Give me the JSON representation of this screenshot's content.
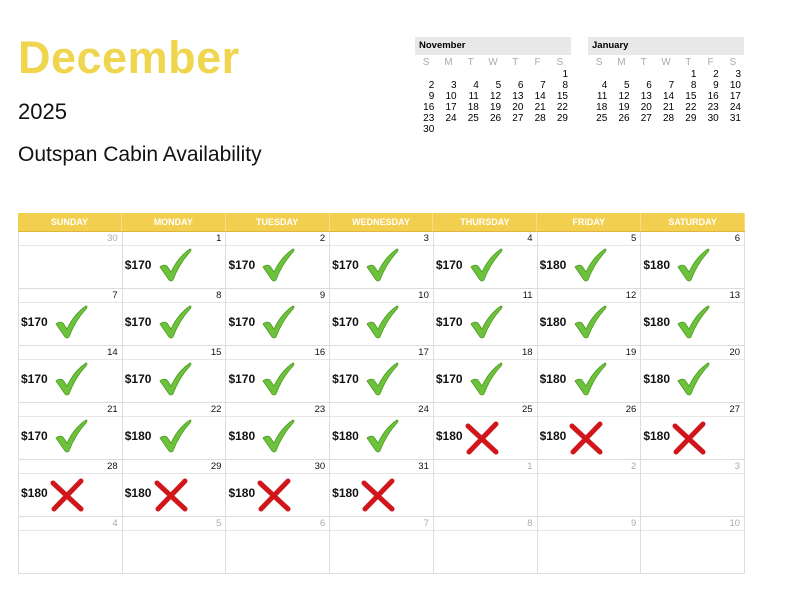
{
  "header": {
    "month": "December",
    "year": "2025",
    "subtitle": "Outspan Cabin Availability"
  },
  "mini_calendars": [
    {
      "title": "November",
      "dow": [
        "S",
        "M",
        "T",
        "W",
        "T",
        "F",
        "S"
      ],
      "weeks": [
        [
          "",
          "",
          "",
          "",
          "",
          "",
          "1"
        ],
        [
          "2",
          "3",
          "4",
          "5",
          "6",
          "7",
          "8"
        ],
        [
          "9",
          "10",
          "11",
          "12",
          "13",
          "14",
          "15"
        ],
        [
          "16",
          "17",
          "18",
          "19",
          "20",
          "21",
          "22"
        ],
        [
          "23",
          "24",
          "25",
          "26",
          "27",
          "28",
          "29"
        ],
        [
          "30",
          "",
          "",
          "",
          "",
          "",
          ""
        ]
      ]
    },
    {
      "title": "January",
      "dow": [
        "S",
        "M",
        "T",
        "W",
        "T",
        "F",
        "S"
      ],
      "weeks": [
        [
          "",
          "",
          "",
          "",
          "1",
          "2",
          "3"
        ],
        [
          "4",
          "5",
          "6",
          "7",
          "8",
          "9",
          "10"
        ],
        [
          "11",
          "12",
          "13",
          "14",
          "15",
          "16",
          "17"
        ],
        [
          "18",
          "19",
          "20",
          "21",
          "22",
          "23",
          "24"
        ],
        [
          "25",
          "26",
          "27",
          "28",
          "29",
          "30",
          "31"
        ]
      ]
    }
  ],
  "weekdays": [
    "SUNDAY",
    "MONDAY",
    "TUESDAY",
    "WEDNESDAY",
    "THURSDAY",
    "FRIDAY",
    "SATURDAY"
  ],
  "colors": {
    "accent": "#f3cf4f",
    "title": "#f0d64e",
    "available": "#6cc23a",
    "booked": "#d0161b"
  },
  "weeks": [
    [
      {
        "day": "30",
        "muted": true
      },
      {
        "day": "1",
        "price": "$170",
        "status": "available"
      },
      {
        "day": "2",
        "price": "$170",
        "status": "available"
      },
      {
        "day": "3",
        "price": "$170",
        "status": "available"
      },
      {
        "day": "4",
        "price": "$170",
        "status": "available"
      },
      {
        "day": "5",
        "price": "$180",
        "status": "available"
      },
      {
        "day": "6",
        "price": "$180",
        "status": "available"
      }
    ],
    [
      {
        "day": "7",
        "price": "$170",
        "status": "available"
      },
      {
        "day": "8",
        "price": "$170",
        "status": "available"
      },
      {
        "day": "9",
        "price": "$170",
        "status": "available"
      },
      {
        "day": "10",
        "price": "$170",
        "status": "available"
      },
      {
        "day": "11",
        "price": "$170",
        "status": "available"
      },
      {
        "day": "12",
        "price": "$180",
        "status": "available"
      },
      {
        "day": "13",
        "price": "$180",
        "status": "available"
      }
    ],
    [
      {
        "day": "14",
        "price": "$170",
        "status": "available"
      },
      {
        "day": "15",
        "price": "$170",
        "status": "available"
      },
      {
        "day": "16",
        "price": "$170",
        "status": "available"
      },
      {
        "day": "17",
        "price": "$170",
        "status": "available"
      },
      {
        "day": "18",
        "price": "$170",
        "status": "available"
      },
      {
        "day": "19",
        "price": "$180",
        "status": "available"
      },
      {
        "day": "20",
        "price": "$180",
        "status": "available"
      }
    ],
    [
      {
        "day": "21",
        "price": "$170",
        "status": "available"
      },
      {
        "day": "22",
        "price": "$180",
        "status": "available"
      },
      {
        "day": "23",
        "price": "$180",
        "status": "available"
      },
      {
        "day": "24",
        "price": "$180",
        "status": "available"
      },
      {
        "day": "25",
        "price": "$180",
        "status": "booked"
      },
      {
        "day": "26",
        "price": "$180",
        "status": "booked"
      },
      {
        "day": "27",
        "price": "$180",
        "status": "booked"
      }
    ],
    [
      {
        "day": "28",
        "price": "$180",
        "status": "booked"
      },
      {
        "day": "29",
        "price": "$180",
        "status": "booked"
      },
      {
        "day": "30",
        "price": "$180",
        "status": "booked"
      },
      {
        "day": "31",
        "price": "$180",
        "status": "booked"
      },
      {
        "day": "1",
        "muted": true
      },
      {
        "day": "2",
        "muted": true
      },
      {
        "day": "3",
        "muted": true
      }
    ],
    [
      {
        "day": "4",
        "muted": true
      },
      {
        "day": "5",
        "muted": true
      },
      {
        "day": "6",
        "muted": true
      },
      {
        "day": "7",
        "muted": true
      },
      {
        "day": "8",
        "muted": true
      },
      {
        "day": "9",
        "muted": true
      },
      {
        "day": "10",
        "muted": true
      }
    ]
  ]
}
